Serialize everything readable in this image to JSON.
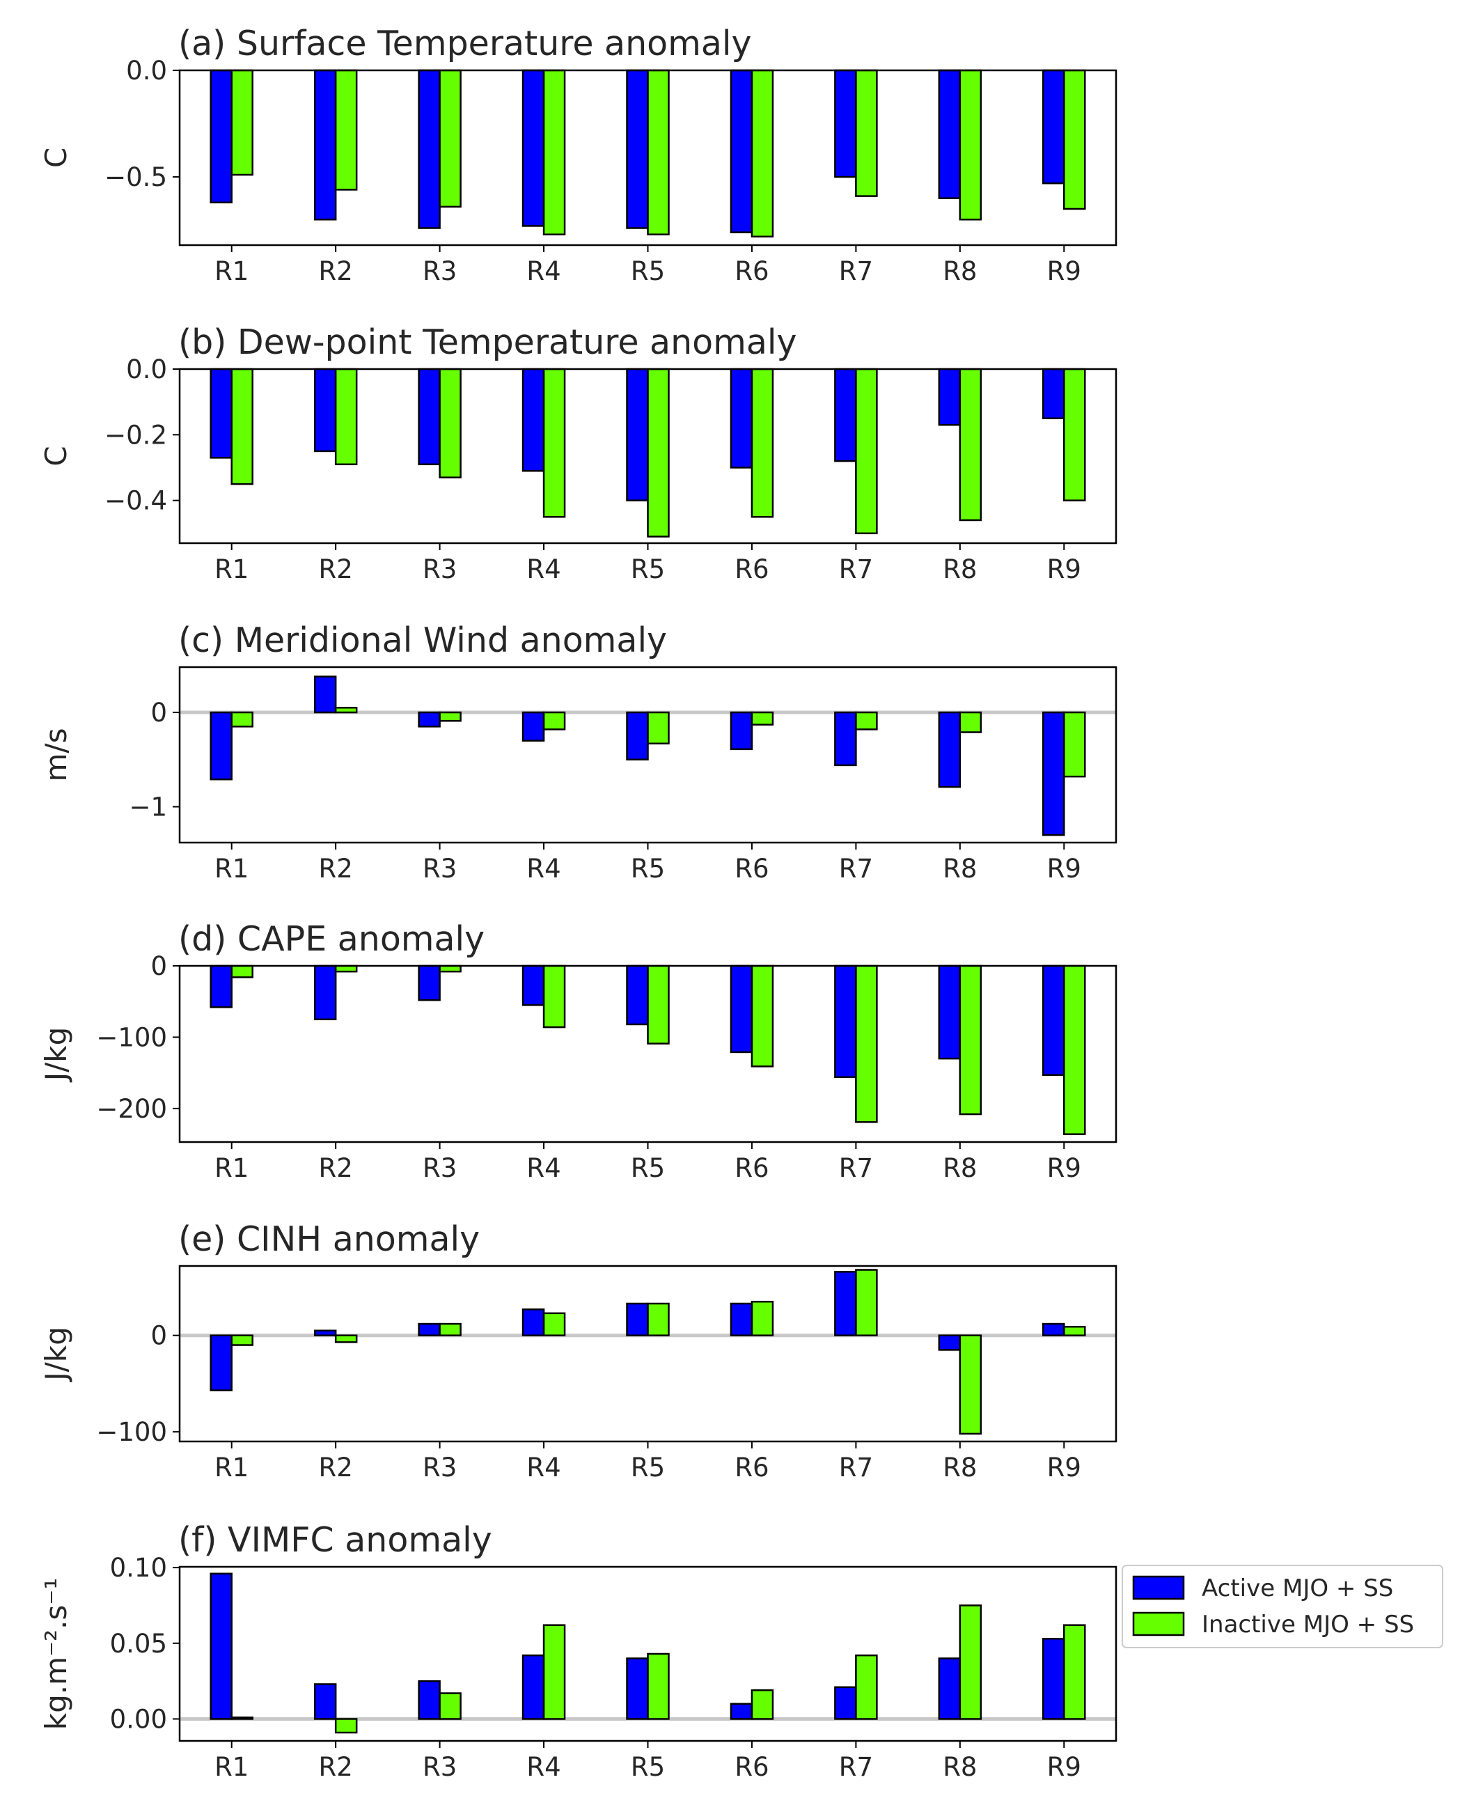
{
  "colors": {
    "active": "#0000ff",
    "inactive": "#66ff00",
    "zero_line": "#c8c8c8",
    "axis": "#000000"
  },
  "legend": {
    "entries": [
      "Active MJO + SS",
      "Inactive MJO + SS"
    ],
    "placement": "right of panel (f)"
  },
  "chart_data": [
    {
      "type": "bar",
      "title": "(a) Surface Temperature anomaly",
      "ylabel": "C",
      "categories": [
        "R1",
        "R2",
        "R3",
        "R4",
        "R5",
        "R6",
        "R7",
        "R8",
        "R9"
      ],
      "ylim": [
        -0.82,
        0.0
      ],
      "yticks": [
        0.0,
        -0.5
      ],
      "ytick_labels": [
        "0.0",
        "−0.5"
      ],
      "zero_line": false,
      "series": [
        {
          "name": "Active MJO + SS",
          "values": [
            -0.62,
            -0.7,
            -0.74,
            -0.73,
            -0.74,
            -0.76,
            -0.5,
            -0.6,
            -0.53
          ]
        },
        {
          "name": "Inactive MJO + SS",
          "values": [
            -0.49,
            -0.56,
            -0.64,
            -0.77,
            -0.77,
            -0.78,
            -0.59,
            -0.7,
            -0.65
          ]
        }
      ]
    },
    {
      "type": "bar",
      "title": "(b) Dew-point Temperature anomaly",
      "ylabel": "C",
      "categories": [
        "R1",
        "R2",
        "R3",
        "R4",
        "R5",
        "R6",
        "R7",
        "R8",
        "R9"
      ],
      "ylim": [
        -0.53,
        0.0
      ],
      "yticks": [
        0.0,
        -0.2,
        -0.4
      ],
      "ytick_labels": [
        "0.0",
        "−0.2",
        "−0.4"
      ],
      "zero_line": false,
      "series": [
        {
          "name": "Active MJO + SS",
          "values": [
            -0.27,
            -0.25,
            -0.29,
            -0.31,
            -0.4,
            -0.3,
            -0.28,
            -0.17,
            -0.15
          ]
        },
        {
          "name": "Inactive MJO + SS",
          "values": [
            -0.35,
            -0.29,
            -0.33,
            -0.45,
            -0.51,
            -0.45,
            -0.5,
            -0.46,
            -0.4
          ]
        }
      ]
    },
    {
      "type": "bar",
      "title": "(c) Meridional Wind anomaly",
      "ylabel": "m/s",
      "categories": [
        "R1",
        "R2",
        "R3",
        "R4",
        "R5",
        "R6",
        "R7",
        "R8",
        "R9"
      ],
      "ylim": [
        -1.38,
        0.48
      ],
      "yticks": [
        0,
        -1
      ],
      "ytick_labels": [
        "0",
        "−1"
      ],
      "zero_line": true,
      "series": [
        {
          "name": "Active MJO + SS",
          "values": [
            -0.71,
            0.38,
            -0.15,
            -0.3,
            -0.5,
            -0.39,
            -0.56,
            -0.79,
            -1.3
          ]
        },
        {
          "name": "Inactive MJO + SS",
          "values": [
            -0.15,
            0.05,
            -0.09,
            -0.18,
            -0.33,
            -0.13,
            -0.18,
            -0.21,
            -0.68
          ]
        }
      ]
    },
    {
      "type": "bar",
      "title": "(d) CAPE anomaly",
      "ylabel": "J/kg",
      "categories": [
        "R1",
        "R2",
        "R3",
        "R4",
        "R5",
        "R6",
        "R7",
        "R8",
        "R9"
      ],
      "ylim": [
        -247,
        0
      ],
      "yticks": [
        0,
        -100,
        -200
      ],
      "ytick_labels": [
        "0",
        "−100",
        "−200"
      ],
      "zero_line": false,
      "series": [
        {
          "name": "Active MJO + SS",
          "values": [
            -58,
            -75,
            -48,
            -55,
            -82,
            -121,
            -156,
            -130,
            -153
          ]
        },
        {
          "name": "Inactive MJO + SS",
          "values": [
            -16,
            -8,
            -8,
            -86,
            -109,
            -141,
            -219,
            -208,
            -236
          ]
        }
      ]
    },
    {
      "type": "bar",
      "title": "(e) CINH anomaly",
      "ylabel": "J/kg",
      "categories": [
        "R1",
        "R2",
        "R3",
        "R4",
        "R5",
        "R6",
        "R7",
        "R8",
        "R9"
      ],
      "ylim": [
        -110,
        72
      ],
      "yticks": [
        0,
        -100
      ],
      "ytick_labels": [
        "0",
        "−100"
      ],
      "zero_line": true,
      "series": [
        {
          "name": "Active MJO + SS",
          "values": [
            -57,
            5,
            12,
            27,
            33,
            33,
            66,
            -15,
            12
          ]
        },
        {
          "name": "Inactive MJO + SS",
          "values": [
            -10,
            -7,
            12,
            23,
            33,
            35,
            68,
            -102,
            9
          ]
        }
      ]
    },
    {
      "type": "bar",
      "title": "(f) VIMFC anomaly",
      "ylabel": "kg.m⁻².s⁻¹",
      "categories": [
        "R1",
        "R2",
        "R3",
        "R4",
        "R5",
        "R6",
        "R7",
        "R8",
        "R9"
      ],
      "ylim": [
        -0.0145,
        0.1005
      ],
      "yticks": [
        0.1,
        0.05,
        0.0
      ],
      "ytick_labels": [
        "0.10",
        "0.05",
        "0.00"
      ],
      "zero_line": true,
      "series": [
        {
          "name": "Active MJO + SS",
          "values": [
            0.096,
            0.023,
            0.025,
            0.042,
            0.04,
            0.01,
            0.021,
            0.04,
            0.053
          ]
        },
        {
          "name": "Inactive MJO + SS",
          "values": [
            0.001,
            -0.009,
            0.017,
            0.062,
            0.043,
            0.019,
            0.042,
            0.075,
            0.062
          ]
        }
      ]
    }
  ]
}
